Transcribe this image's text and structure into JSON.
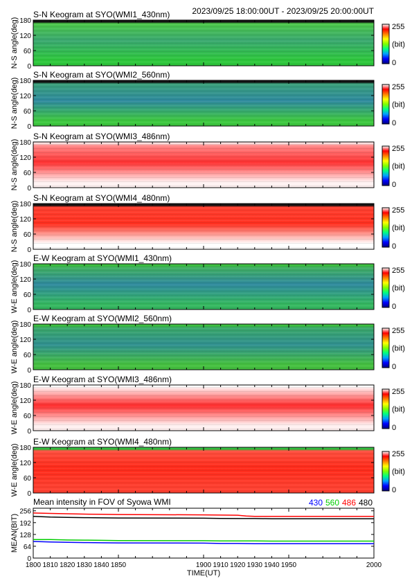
{
  "header": {
    "date_range": "2023/09/25 18:00:00UT - 2023/09/25 20:00:00UT"
  },
  "colorbar": {
    "max_label": "255",
    "unit_label": "(bit)",
    "min_label": "0",
    "stops": [
      "#00007f",
      "#0000ff",
      "#00a0ff",
      "#00ff80",
      "#7fff00",
      "#ffff00",
      "#ff8000",
      "#ff0000",
      "#ffffff"
    ]
  },
  "chart_data": [
    {
      "type": "heatmap",
      "title": "S-N Keogram at SYO(WMI1_430nm)",
      "ylabel": "N-S angle(deg)",
      "yticks": [
        "180",
        "120",
        "60",
        "0"
      ],
      "ylim": [
        0,
        180
      ],
      "xlim": [
        1800,
        2000
      ],
      "clim": [
        0,
        255
      ],
      "colors": {
        "bottom": "#2ec83c",
        "middle": "#3aa870",
        "top": "#4cc84a",
        "edge": "#111111"
      }
    },
    {
      "type": "heatmap",
      "title": "S-N Keogram at SYO(WMI2_560nm)",
      "ylabel": "N-S angle(deg)",
      "yticks": [
        "180",
        "120",
        "60",
        "0"
      ],
      "ylim": [
        0,
        180
      ],
      "xlim": [
        1800,
        2000
      ],
      "clim": [
        0,
        255
      ],
      "colors": {
        "bottom": "#3ec840",
        "middle": "#2f8a9e",
        "top": "#3aa07a",
        "edge": "#111111"
      }
    },
    {
      "type": "heatmap",
      "title": "S-N Keogram at SYO(WMI3_486nm)",
      "ylabel": "N-S angle(deg)",
      "yticks": [
        "180",
        "120",
        "60",
        "0"
      ],
      "ylim": [
        0,
        180
      ],
      "xlim": [
        1800,
        2000
      ],
      "clim": [
        0,
        255
      ],
      "colors": {
        "bottom": "#fff2f2",
        "middle": "#ff3030",
        "top": "#ff8888",
        "edge": "#ffe0e0"
      }
    },
    {
      "type": "heatmap",
      "title": "S-N Keogram at SYO(WMI4_480nm)",
      "ylabel": "N-S angle(deg)",
      "yticks": [
        "180",
        "120",
        "60",
        "0"
      ],
      "ylim": [
        0,
        180
      ],
      "xlim": [
        1800,
        2000
      ],
      "clim": [
        0,
        255
      ],
      "colors": {
        "bottom": "#ffffff",
        "middle": "#ff3020",
        "top": "#ff4030",
        "edge": "#111111"
      }
    },
    {
      "type": "heatmap",
      "title": "E-W Keogram at SYO(WMI1_430nm)",
      "ylabel": "W-E angle(deg)",
      "yticks": [
        "180",
        "120",
        "60",
        "0"
      ],
      "ylim": [
        0,
        180
      ],
      "xlim": [
        1800,
        2000
      ],
      "clim": [
        0,
        255
      ],
      "colors": {
        "bottom": "#35b860",
        "middle": "#2f8a9e",
        "top": "#40b060",
        "edge": "#3cc040"
      }
    },
    {
      "type": "heatmap",
      "title": "E-W Keogram at SYO(WMI2_560nm)",
      "ylabel": "W-E angle(deg)",
      "yticks": [
        "180",
        "120",
        "60",
        "0"
      ],
      "ylim": [
        0,
        180
      ],
      "xlim": [
        1800,
        2000
      ],
      "clim": [
        0,
        255
      ],
      "colors": {
        "bottom": "#45c040",
        "middle": "#309090",
        "top": "#3aa868",
        "edge": "#3cc040"
      }
    },
    {
      "type": "heatmap",
      "title": "E-W Keogram at SYO(WMI3_486nm)",
      "ylabel": "W-E angle(deg)",
      "yticks": [
        "180",
        "120",
        "60",
        "0"
      ],
      "ylim": [
        0,
        180
      ],
      "xlim": [
        1800,
        2000
      ],
      "clim": [
        0,
        255
      ],
      "colors": {
        "bottom": "#fff0f0",
        "middle": "#ff2a2a",
        "top": "#ffe0e0",
        "edge": "#ffffff"
      }
    },
    {
      "type": "heatmap",
      "title": "E-W Keogram at SYO(WMI4_480nm)",
      "ylabel": "W-E angle(deg)",
      "yticks": [
        "180",
        "120",
        "60",
        "0"
      ],
      "ylim": [
        0,
        180
      ],
      "xlim": [
        1800,
        2000
      ],
      "clim": [
        0,
        255
      ],
      "colors": {
        "bottom": "#ff4030",
        "middle": "#ff2a1a",
        "top": "#ff5040",
        "edge": "#30c040"
      }
    },
    {
      "type": "line",
      "title": "Mean intensity in FOV of Syowa WMI",
      "xlabel": "TIME(UT)",
      "ylabel": "MEAN(BIT)",
      "xlim": [
        1800,
        2000
      ],
      "ylim": [
        0,
        270
      ],
      "xticks": [
        "1800",
        "1810",
        "1820",
        "1830",
        "1840",
        "1850",
        "1860",
        "1870",
        "1880",
        "1890",
        "1900",
        "1910",
        "1920",
        "1930",
        "1940",
        "1950",
        "1960",
        "1970",
        "1980",
        "1990",
        "2000"
      ],
      "yticks": [
        "256",
        "192",
        "128",
        "64",
        "0"
      ],
      "xtick_labels_shown": [
        "1800",
        "1810",
        "1820",
        "1830",
        "1840",
        "1850",
        "1900",
        "1910",
        "1920",
        "1930",
        "1940",
        "1950",
        "2000"
      ],
      "legend_placement": "top-right",
      "legend": [
        {
          "label": "430",
          "color": "#0000ff"
        },
        {
          "label": "560",
          "color": "#00cc00"
        },
        {
          "label": "486",
          "color": "#ff0000"
        },
        {
          "label": "480",
          "color": "#000000"
        }
      ],
      "series": [
        {
          "color": "#ff0000",
          "x": [
            1800,
            1810,
            1820,
            1830,
            1840,
            1850,
            1900,
            1910,
            1920,
            1925,
            1930,
            1940,
            1950,
            2000
          ],
          "y": [
            244,
            242,
            240,
            238,
            237,
            236,
            234,
            233,
            232,
            228,
            226,
            226,
            226,
            226
          ]
        },
        {
          "color": "#000000",
          "x": [
            1800,
            1810,
            1820,
            1830,
            1840,
            1850,
            1900,
            1910,
            1920,
            1930,
            1940,
            1950,
            2000
          ],
          "y": [
            226,
            222,
            220,
            219,
            218,
            217,
            216,
            215,
            214,
            214,
            213,
            213,
            213
          ]
        },
        {
          "color": "#00cc00",
          "x": [
            1800,
            1810,
            1820,
            1830,
            1840,
            1850,
            1900,
            1910,
            1920,
            1930,
            1940,
            1950,
            2000
          ],
          "y": [
            100,
            100,
            98,
            97,
            96,
            95,
            94,
            93,
            93,
            93,
            92,
            92,
            92
          ]
        },
        {
          "color": "#0000ff",
          "x": [
            1800,
            1810,
            1820,
            1830,
            1840,
            1850,
            1900,
            1910,
            1920,
            1930,
            1940,
            1950,
            2000
          ],
          "y": [
            90,
            87,
            85,
            84,
            83,
            82,
            81,
            79,
            79,
            78,
            78,
            78,
            78
          ]
        }
      ]
    }
  ]
}
